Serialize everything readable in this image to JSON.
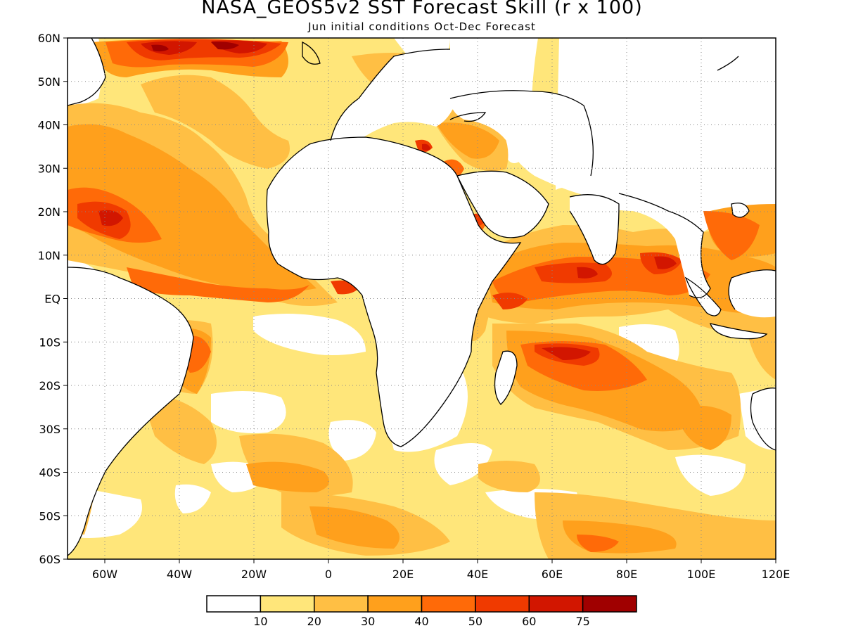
{
  "title": "NASA_GEOS5v2 SST Forecast Skill (r x 100)",
  "subtitle": "Jun initial conditions  Oct-Dec Forecast",
  "map": {
    "lon_range": [
      -70,
      120
    ],
    "lat_range": [
      -60,
      60
    ],
    "lat_ticks": [
      {
        "v": 60,
        "label": "60N"
      },
      {
        "v": 50,
        "label": "50N"
      },
      {
        "v": 40,
        "label": "40N"
      },
      {
        "v": 30,
        "label": "30N"
      },
      {
        "v": 20,
        "label": "20N"
      },
      {
        "v": 10,
        "label": "10N"
      },
      {
        "v": 0,
        "label": "EQ"
      },
      {
        "v": -10,
        "label": "10S"
      },
      {
        "v": -20,
        "label": "20S"
      },
      {
        "v": -30,
        "label": "30S"
      },
      {
        "v": -40,
        "label": "40S"
      },
      {
        "v": -50,
        "label": "50S"
      },
      {
        "v": -60,
        "label": "60S"
      }
    ],
    "lon_ticks": [
      {
        "v": -60,
        "label": "60W"
      },
      {
        "v": -40,
        "label": "40W"
      },
      {
        "v": -20,
        "label": "20W"
      },
      {
        "v": 0,
        "label": "0"
      },
      {
        "v": 20,
        "label": "20E"
      },
      {
        "v": 40,
        "label": "40E"
      },
      {
        "v": 60,
        "label": "60E"
      },
      {
        "v": 80,
        "label": "80E"
      },
      {
        "v": 100,
        "label": "100E"
      },
      {
        "v": 120,
        "label": "120E"
      }
    ]
  },
  "colorbar": {
    "colors": [
      "#ffffff",
      "#ffe67a",
      "#ffbf44",
      "#ffa01c",
      "#ff6a08",
      "#f03a00",
      "#d21600",
      "#a00000"
    ],
    "labels": [
      "10",
      "20",
      "30",
      "40",
      "50",
      "60",
      "75"
    ]
  },
  "colors": {
    "level1": "#ffe67a",
    "level2": "#ffbf44",
    "level3": "#ffa01c",
    "level4": "#ff6a08",
    "level5": "#f03a00",
    "level6": "#d21600",
    "level7": "#a00000"
  }
}
